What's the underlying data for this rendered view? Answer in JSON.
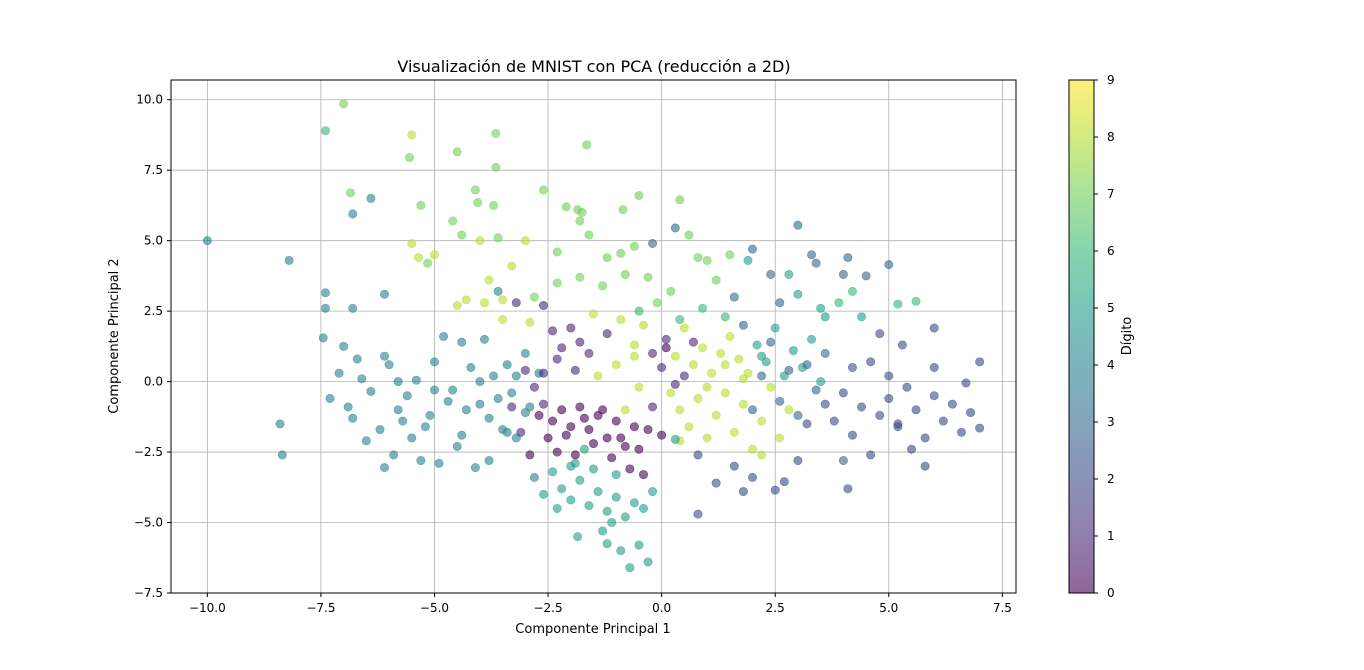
{
  "chart_data": {
    "type": "scatter",
    "title": "Visualización de MNIST con PCA (reducción a 2D)",
    "xlabel": "Componente Principal 1",
    "ylabel": "Componente Principal 2",
    "xlim": [
      -10.8,
      7.8
    ],
    "ylim": [
      -7.5,
      10.7
    ],
    "x_ticks": [
      -10.0,
      -7.5,
      -5.0,
      -2.5,
      0.0,
      2.5,
      5.0,
      7.5
    ],
    "x_tick_labels": [
      "−10.0",
      "−7.5",
      "−5.0",
      "−2.5",
      "0.0",
      "2.5",
      "5.0",
      "7.5"
    ],
    "y_ticks": [
      -7.5,
      -5.0,
      -2.5,
      0.0,
      2.5,
      5.0,
      7.5,
      10.0
    ],
    "y_tick_labels": [
      "−7.5",
      "−5.0",
      "−2.5",
      "0.0",
      "2.5",
      "5.0",
      "7.5",
      "10.0"
    ],
    "grid": true,
    "colormap": "viridis",
    "point_alpha": 0.6,
    "colorbar": {
      "label": "Dígito",
      "min": 0,
      "max": 9,
      "ticks": [
        0,
        1,
        2,
        3,
        4,
        5,
        6,
        7,
        8,
        9
      ],
      "tick_labels": [
        "0",
        "1",
        "2",
        "3",
        "4",
        "5",
        "6",
        "7",
        "8",
        "9"
      ]
    },
    "points": [
      [
        -10.0,
        5.0,
        4
      ],
      [
        -8.2,
        4.3,
        4
      ],
      [
        -8.4,
        -1.5,
        4
      ],
      [
        -8.35,
        -2.6,
        4
      ],
      [
        -7.4,
        8.9,
        6
      ],
      [
        -7.0,
        9.85,
        7
      ],
      [
        -6.85,
        6.7,
        7
      ],
      [
        -6.8,
        5.95,
        4
      ],
      [
        -6.4,
        6.5,
        4
      ],
      [
        -6.1,
        3.1,
        4
      ],
      [
        -7.4,
        3.15,
        4
      ],
      [
        -7.4,
        2.6,
        4
      ],
      [
        -6.8,
        2.6,
        4
      ],
      [
        -7.45,
        1.55,
        4
      ],
      [
        -7.3,
        -0.6,
        4
      ],
      [
        -7.0,
        1.25,
        4
      ],
      [
        -6.7,
        0.8,
        4
      ],
      [
        -6.4,
        -0.35,
        4
      ],
      [
        -6.8,
        -1.3,
        4
      ],
      [
        -6.1,
        -3.05,
        4
      ],
      [
        -6.1,
        0.9,
        4
      ],
      [
        -6.0,
        0.6,
        4
      ],
      [
        -5.8,
        -1.0,
        4
      ],
      [
        -5.6,
        -0.5,
        4
      ],
      [
        -5.5,
        -2.0,
        4
      ],
      [
        -5.4,
        0.05,
        4
      ],
      [
        -5.2,
        -1.6,
        4
      ],
      [
        -5.0,
        0.7,
        4
      ],
      [
        -4.9,
        -2.9,
        4
      ],
      [
        -4.8,
        1.6,
        4
      ],
      [
        -4.6,
        -0.3,
        4
      ],
      [
        -4.5,
        -2.3,
        4
      ],
      [
        -4.4,
        1.4,
        4
      ],
      [
        -4.2,
        0.5,
        4
      ],
      [
        -4.1,
        -3.05,
        4
      ],
      [
        -4.0,
        -0.8,
        4
      ],
      [
        -3.9,
        1.5,
        4
      ],
      [
        -3.8,
        -2.8,
        4
      ],
      [
        -3.7,
        0.2,
        4
      ],
      [
        -3.6,
        3.2,
        4
      ],
      [
        -3.5,
        -1.7,
        4
      ],
      [
        -3.4,
        0.6,
        4
      ],
      [
        -3.3,
        -0.4,
        4
      ],
      [
        -3.2,
        -2.0,
        4
      ],
      [
        -3.0,
        1.0,
        4
      ],
      [
        -2.9,
        -0.9,
        4
      ],
      [
        -2.8,
        -3.4,
        4
      ],
      [
        -2.7,
        0.3,
        4
      ],
      [
        -5.5,
        8.75,
        8
      ],
      [
        -5.55,
        7.95,
        7
      ],
      [
        -5.3,
        6.25,
        7
      ],
      [
        -4.6,
        5.7,
        7
      ],
      [
        -4.5,
        8.15,
        7
      ],
      [
        -3.65,
        8.8,
        7
      ],
      [
        -3.65,
        7.6,
        7
      ],
      [
        -3.7,
        6.25,
        7
      ],
      [
        -4.1,
        6.8,
        7
      ],
      [
        -4.05,
        6.35,
        7
      ],
      [
        -4.4,
        5.2,
        7
      ],
      [
        -3.6,
        5.1,
        7
      ],
      [
        -5.5,
        4.9,
        8
      ],
      [
        -5.35,
        4.4,
        8
      ],
      [
        -5.15,
        4.2,
        7
      ],
      [
        -5.0,
        4.5,
        8
      ],
      [
        -4.0,
        5.0,
        8
      ],
      [
        -4.5,
        2.7,
        8
      ],
      [
        -4.3,
        2.9,
        8
      ],
      [
        -3.8,
        3.6,
        8
      ],
      [
        -3.9,
        2.8,
        8
      ],
      [
        -3.5,
        2.9,
        8
      ],
      [
        -3.3,
        4.1,
        8
      ],
      [
        -3.0,
        5.0,
        8
      ],
      [
        -2.6,
        6.8,
        7
      ],
      [
        -2.1,
        6.2,
        7
      ],
      [
        -1.85,
        6.1,
        7
      ],
      [
        -1.65,
        8.4,
        7
      ],
      [
        -1.75,
        6.0,
        7
      ],
      [
        -0.85,
        6.1,
        7
      ],
      [
        -0.5,
        6.6,
        7
      ],
      [
        0.4,
        6.45,
        7
      ],
      [
        -2.3,
        4.6,
        7
      ],
      [
        -1.8,
        5.7,
        7
      ],
      [
        -1.6,
        5.2,
        7
      ],
      [
        -1.2,
        4.4,
        7
      ],
      [
        -0.9,
        4.55,
        7
      ],
      [
        -0.6,
        4.8,
        7
      ],
      [
        -0.2,
        4.9,
        3
      ],
      [
        0.3,
        5.45,
        3
      ],
      [
        0.6,
        5.2,
        7
      ],
      [
        0.8,
        4.4,
        7
      ],
      [
        1.0,
        4.3,
        7
      ],
      [
        1.5,
        4.5,
        7
      ],
      [
        2.0,
        4.7,
        3
      ],
      [
        1.9,
        4.3,
        5
      ],
      [
        2.4,
        3.8,
        3
      ],
      [
        3.0,
        5.55,
        3
      ],
      [
        3.3,
        4.5,
        3
      ],
      [
        3.4,
        4.2,
        3
      ],
      [
        4.1,
        4.4,
        3
      ],
      [
        4.5,
        3.75,
        3
      ],
      [
        5.0,
        4.15,
        3
      ],
      [
        5.2,
        2.75,
        6
      ],
      [
        5.6,
        2.85,
        6
      ],
      [
        4.2,
        3.2,
        6
      ],
      [
        3.9,
        2.8,
        6
      ],
      [
        4.4,
        2.3,
        5
      ],
      [
        3.6,
        2.3,
        5
      ],
      [
        2.8,
        3.8,
        5
      ],
      [
        -3.5,
        2.2,
        8
      ],
      [
        -3.2,
        2.8,
        1
      ],
      [
        -2.9,
        2.1,
        8
      ],
      [
        -2.6,
        2.7,
        1
      ],
      [
        -2.4,
        1.8,
        1
      ],
      [
        -2.2,
        1.2,
        1
      ],
      [
        -2.0,
        1.9,
        1
      ],
      [
        -1.8,
        1.4,
        1
      ],
      [
        -1.5,
        2.4,
        8
      ],
      [
        -1.2,
        1.7,
        1
      ],
      [
        -0.9,
        2.2,
        8
      ],
      [
        -0.6,
        1.3,
        8
      ],
      [
        -0.4,
        2.0,
        8
      ],
      [
        -0.2,
        1.0,
        1
      ],
      [
        0.1,
        1.5,
        1
      ],
      [
        0.3,
        0.9,
        8
      ],
      [
        0.5,
        1.9,
        8
      ],
      [
        0.7,
        0.6,
        8
      ],
      [
        0.9,
        1.2,
        8
      ],
      [
        1.1,
        0.3,
        8
      ],
      [
        1.3,
        1.0,
        8
      ],
      [
        1.5,
        1.6,
        8
      ],
      [
        1.7,
        0.8,
        8
      ],
      [
        1.9,
        0.3,
        8
      ],
      [
        2.1,
        1.3,
        5
      ],
      [
        2.3,
        0.7,
        5
      ],
      [
        2.5,
        1.9,
        5
      ],
      [
        2.7,
        0.2,
        5
      ],
      [
        2.9,
        1.1,
        5
      ],
      [
        3.1,
        0.5,
        5
      ],
      [
        3.3,
        1.5,
        5
      ],
      [
        3.5,
        0.0,
        5
      ],
      [
        -2.8,
        -0.2,
        1
      ],
      [
        -2.6,
        -0.8,
        1
      ],
      [
        -2.4,
        -1.4,
        0
      ],
      [
        -2.2,
        -1.0,
        0
      ],
      [
        -2.0,
        -1.6,
        0
      ],
      [
        -1.8,
        -0.9,
        0
      ],
      [
        -1.6,
        -1.7,
        0
      ],
      [
        -1.4,
        -1.2,
        0
      ],
      [
        -1.2,
        -2.0,
        0
      ],
      [
        -1.0,
        -1.4,
        0
      ],
      [
        -0.8,
        -2.3,
        0
      ],
      [
        -0.6,
        -1.6,
        0
      ],
      [
        -2.5,
        -2.0,
        0
      ],
      [
        -2.3,
        -2.5,
        0
      ],
      [
        -2.1,
        -1.9,
        0
      ],
      [
        -1.9,
        -2.6,
        0
      ],
      [
        -1.7,
        -1.3,
        0
      ],
      [
        -1.5,
        -2.2,
        0
      ],
      [
        -1.3,
        -1.0,
        0
      ],
      [
        -1.1,
        -2.7,
        0
      ],
      [
        -0.9,
        -2.0,
        0
      ],
      [
        -0.7,
        -3.1,
        0
      ],
      [
        -0.5,
        -2.4,
        0
      ],
      [
        -0.3,
        -1.7,
        0
      ],
      [
        -2.7,
        -1.2,
        0
      ],
      [
        -2.9,
        -2.6,
        0
      ],
      [
        -3.1,
        -1.8,
        1
      ],
      [
        -3.3,
        -0.9,
        1
      ],
      [
        -2.4,
        -3.2,
        5
      ],
      [
        -2.2,
        -3.8,
        5
      ],
      [
        -2.0,
        -4.2,
        5
      ],
      [
        -1.8,
        -3.5,
        5
      ],
      [
        -1.6,
        -4.4,
        5
      ],
      [
        -1.4,
        -3.9,
        5
      ],
      [
        -1.2,
        -4.6,
        5
      ],
      [
        -1.0,
        -4.1,
        5
      ],
      [
        -0.8,
        -4.8,
        5
      ],
      [
        -0.6,
        -4.3,
        5
      ],
      [
        -1.3,
        -5.3,
        5
      ],
      [
        -1.1,
        -5.0,
        5
      ],
      [
        -1.85,
        -5.5,
        5
      ],
      [
        -1.2,
        -5.75,
        5
      ],
      [
        -0.9,
        -6.0,
        5
      ],
      [
        -0.5,
        -5.8,
        5
      ],
      [
        -0.3,
        -6.4,
        5
      ],
      [
        -0.7,
        -6.6,
        5
      ],
      [
        -2.6,
        -4.0,
        5
      ],
      [
        -2.3,
        -4.5,
        5
      ],
      [
        -1.5,
        -3.1,
        5
      ],
      [
        -1.9,
        -2.9,
        5
      ],
      [
        -0.4,
        -4.5,
        5
      ],
      [
        -0.2,
        -3.9,
        5
      ],
      [
        -2.0,
        -3.0,
        5
      ],
      [
        -1.7,
        -2.4,
        5
      ],
      [
        -1.0,
        -3.3,
        5
      ],
      [
        -0.4,
        -3.3,
        0
      ],
      [
        0.2,
        -0.4,
        8
      ],
      [
        0.4,
        -1.0,
        8
      ],
      [
        0.6,
        -1.6,
        8
      ],
      [
        0.8,
        -0.6,
        8
      ],
      [
        1.0,
        -2.0,
        8
      ],
      [
        1.2,
        -1.2,
        8
      ],
      [
        1.4,
        -0.4,
        8
      ],
      [
        1.6,
        -1.8,
        8
      ],
      [
        1.8,
        -0.8,
        8
      ],
      [
        2.0,
        -2.4,
        8
      ],
      [
        2.2,
        -1.4,
        8
      ],
      [
        2.4,
        -0.2,
        8
      ],
      [
        2.6,
        -2.0,
        8
      ],
      [
        2.8,
        -1.0,
        8
      ],
      [
        3.0,
        -2.8,
        2
      ],
      [
        3.2,
        -1.5,
        2
      ],
      [
        0.4,
        -2.1,
        8
      ],
      [
        0.8,
        -2.6,
        2
      ],
      [
        1.2,
        -3.6,
        2
      ],
      [
        0.8,
        -4.7,
        2
      ],
      [
        1.6,
        -3.0,
        2
      ],
      [
        1.8,
        -3.9,
        2
      ],
      [
        2.0,
        -3.4,
        2
      ],
      [
        2.5,
        -3.85,
        2
      ],
      [
        2.7,
        -3.55,
        2
      ],
      [
        2.2,
        -2.6,
        8
      ],
      [
        0.0,
        -1.9,
        0
      ],
      [
        0.3,
        -2.05,
        5
      ],
      [
        -0.8,
        -1.0,
        8
      ],
      [
        -0.5,
        -0.2,
        8
      ],
      [
        -0.2,
        -0.9,
        1
      ],
      [
        0.0,
        0.5,
        1
      ],
      [
        0.1,
        1.2,
        0
      ],
      [
        0.3,
        -0.1,
        1
      ],
      [
        0.5,
        0.2,
        1
      ],
      [
        0.7,
        1.4,
        1
      ],
      [
        3.6,
        -0.8,
        2
      ],
      [
        3.8,
        -1.4,
        2
      ],
      [
        4.0,
        -0.4,
        2
      ],
      [
        4.2,
        -1.9,
        2
      ],
      [
        4.4,
        -0.9,
        2
      ],
      [
        4.6,
        -2.6,
        2
      ],
      [
        4.8,
        -1.2,
        2
      ],
      [
        5.0,
        -0.6,
        2
      ],
      [
        5.2,
        -1.6,
        2
      ],
      [
        5.4,
        -0.2,
        2
      ],
      [
        5.6,
        -1.0,
        2
      ],
      [
        5.8,
        -2.0,
        2
      ],
      [
        6.0,
        -0.5,
        2
      ],
      [
        6.2,
        -1.4,
        2
      ],
      [
        6.4,
        -0.8,
        2
      ],
      [
        6.6,
        -1.8,
        2
      ],
      [
        6.8,
        -1.1,
        2
      ],
      [
        7.0,
        -1.65,
        2
      ],
      [
        7.0,
        0.7,
        2
      ],
      [
        6.7,
        -0.05,
        2
      ],
      [
        6.0,
        0.5,
        2
      ],
      [
        5.8,
        -3.0,
        2
      ],
      [
        5.5,
        -2.4,
        2
      ],
      [
        5.2,
        -1.5,
        2
      ],
      [
        4.6,
        0.7,
        2
      ],
      [
        4.2,
        0.5,
        2
      ],
      [
        5.0,
        0.2,
        2
      ],
      [
        5.3,
        1.3,
        2
      ],
      [
        6.0,
        1.9,
        2
      ],
      [
        4.8,
        1.7,
        2
      ],
      [
        4.1,
        -3.8,
        2
      ],
      [
        4.0,
        -2.8,
        3
      ],
      [
        3.6,
        1.0,
        3
      ],
      [
        3.4,
        -0.3,
        3
      ],
      [
        3.2,
        0.6,
        3
      ],
      [
        3.0,
        -1.2,
        3
      ],
      [
        2.8,
        0.4,
        3
      ],
      [
        2.6,
        -0.7,
        3
      ],
      [
        2.4,
        1.4,
        3
      ],
      [
        2.2,
        0.2,
        3
      ],
      [
        2.0,
        -1.0,
        3
      ],
      [
        1.8,
        2.0,
        3
      ],
      [
        1.6,
        3.0,
        3
      ],
      [
        2.6,
        2.8,
        3
      ],
      [
        3.0,
        3.1,
        5
      ],
      [
        3.5,
        2.6,
        5
      ],
      [
        4.0,
        3.8,
        3
      ],
      [
        1.2,
        3.6,
        7
      ],
      [
        0.2,
        3.2,
        7
      ],
      [
        -0.3,
        3.7,
        7
      ],
      [
        -0.8,
        3.8,
        7
      ],
      [
        -1.3,
        3.4,
        7
      ],
      [
        -1.8,
        3.7,
        7
      ],
      [
        -2.3,
        3.5,
        7
      ],
      [
        -2.8,
        3.0,
        7
      ],
      [
        -0.1,
        2.8,
        7
      ],
      [
        0.9,
        2.6,
        6
      ],
      [
        0.4,
        2.2,
        6
      ],
      [
        -0.5,
        2.5,
        6
      ],
      [
        1.4,
        2.3,
        6
      ],
      [
        -1.0,
        0.6,
        8
      ],
      [
        -1.4,
        0.2,
        8
      ],
      [
        -1.6,
        1.0,
        1
      ],
      [
        -1.9,
        0.4,
        1
      ],
      [
        -2.3,
        0.8,
        1
      ],
      [
        -2.6,
        0.3,
        1
      ],
      [
        -3.0,
        0.4,
        1
      ],
      [
        -0.6,
        0.9,
        8
      ],
      [
        1.0,
        -0.2,
        8
      ],
      [
        1.4,
        0.6,
        8
      ],
      [
        1.8,
        0.1,
        8
      ],
      [
        2.2,
        0.9,
        5
      ],
      [
        -4.3,
        -1.0,
        4
      ],
      [
        -4.7,
        -0.7,
        4
      ],
      [
        -5.1,
        -1.2,
        4
      ],
      [
        -5.7,
        -1.4,
        4
      ],
      [
        -6.2,
        -1.7,
        4
      ],
      [
        -6.5,
        -2.1,
        4
      ],
      [
        -5.9,
        -2.6,
        4
      ],
      [
        -5.3,
        -2.8,
        4
      ],
      [
        -4.4,
        -1.9,
        4
      ],
      [
        -3.8,
        -1.3,
        4
      ],
      [
        -3.4,
        -1.8,
        4
      ],
      [
        -3.0,
        -1.1,
        4
      ],
      [
        -6.9,
        -0.9,
        4
      ],
      [
        -6.6,
        0.1,
        4
      ],
      [
        -7.1,
        0.3,
        4
      ],
      [
        -5.8,
        0.0,
        4
      ],
      [
        -5.0,
        -0.3,
        4
      ],
      [
        -4.0,
        0.0,
        4
      ],
      [
        -3.6,
        -0.6,
        4
      ],
      [
        -3.2,
        0.2,
        4
      ]
    ]
  }
}
